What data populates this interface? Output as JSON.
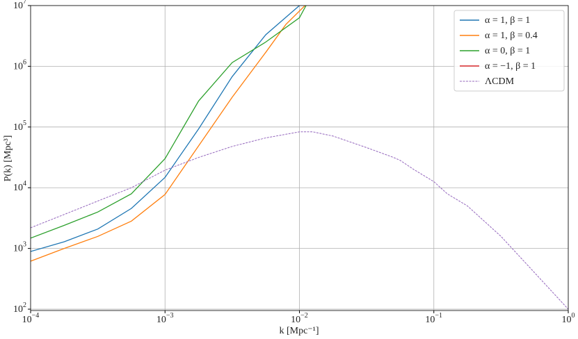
{
  "chart_data": {
    "type": "line",
    "xlabel": "k [Mpc⁻¹]",
    "ylabel": "P(k) [Mpc³]",
    "xscale": "log",
    "yscale": "log",
    "grid": true,
    "legend": "upper right",
    "xlim": [
      0.0001,
      1
    ],
    "ylim": [
      95,
      10000000
    ],
    "xticks": [
      {
        "value": 0.0001,
        "label": "10^−4"
      },
      {
        "value": 0.001,
        "label": "10^−3"
      },
      {
        "value": 0.01,
        "label": "10^−2"
      },
      {
        "value": 0.1,
        "label": "10^−1"
      },
      {
        "value": 1,
        "label": "10^0"
      }
    ],
    "yticks": [
      {
        "value": 100,
        "label": "10^2"
      },
      {
        "value": 1000,
        "label": "10^3"
      },
      {
        "value": 10000,
        "label": "10^4"
      },
      {
        "value": 100000,
        "label": "10^5"
      },
      {
        "value": 1000000,
        "label": "10^6"
      },
      {
        "value": 10000000,
        "label": "10^7"
      }
    ],
    "series": [
      {
        "name": "α = 1, β = 1",
        "color": "#1f77b4",
        "dash": false,
        "x": [
          0.0001,
          0.000178,
          0.000316,
          0.000562,
          0.001,
          0.00178,
          0.00316,
          0.00562,
          0.01
        ],
        "values": [
          891,
          1290,
          2090,
          4570,
          14800,
          93300,
          676000,
          3310000,
          10000000
        ]
      },
      {
        "name": "α = 1, β = 0.4",
        "color": "#ff7f0e",
        "dash": false,
        "x": [
          0.0001,
          0.000178,
          0.000316,
          0.000562,
          0.001,
          0.00178,
          0.00316,
          0.00562,
          0.00794,
          0.011
        ],
        "values": [
          617,
          1000,
          1580,
          2820,
          7760,
          49000,
          309000,
          1700000,
          4900000,
          10000000
        ]
      },
      {
        "name": "α = 0, β = 1",
        "color": "#2ca02c",
        "dash": false,
        "x": [
          0.0001,
          0.000178,
          0.000316,
          0.000562,
          0.001,
          0.00178,
          0.00316,
          0.00562,
          0.01,
          0.0112
        ],
        "values": [
          1480,
          2400,
          3980,
          7940,
          30200,
          269000,
          1150000,
          2510000,
          6310000,
          10000000
        ]
      },
      {
        "name": "α = −1, β = 1",
        "color": "#d62728",
        "dash": false,
        "x": [],
        "values": []
      },
      {
        "name": "ΛCDM",
        "color": "#9467bd",
        "dash": true,
        "x": [
          0.0001,
          0.000178,
          0.000316,
          0.000562,
          0.001,
          0.00178,
          0.00316,
          0.00562,
          0.01,
          0.0126,
          0.0178,
          0.0316,
          0.0501,
          0.0562,
          0.0708,
          0.1,
          0.126,
          0.178,
          0.251,
          0.316,
          0.562,
          1
        ],
        "values": [
          2190,
          3630,
          6030,
          10000,
          19500,
          31600,
          47900,
          66100,
          83200,
          83200,
          70800,
          45700,
          31600,
          28200,
          20000,
          12600,
          7940,
          5010,
          2510,
          1580,
          398,
          100
        ]
      }
    ]
  }
}
